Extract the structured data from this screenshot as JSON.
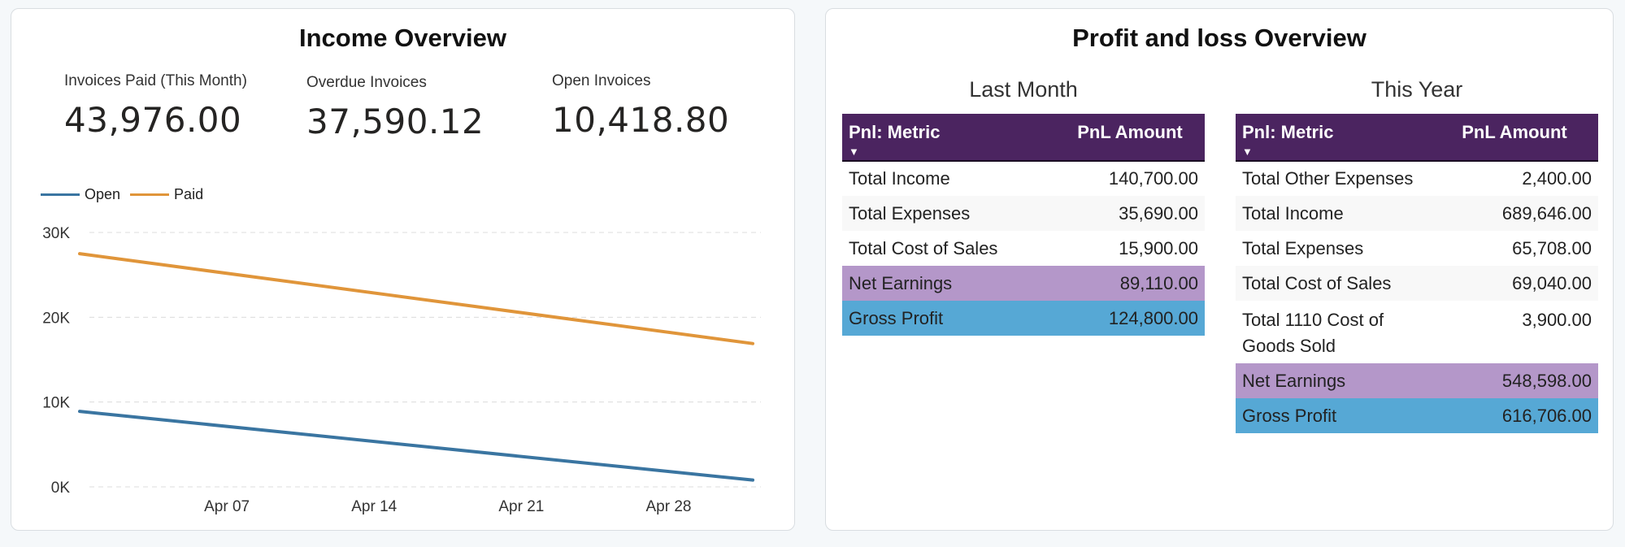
{
  "income": {
    "title": "Income Overview",
    "kpis": [
      {
        "label": "Invoices Paid (This Month)",
        "value": "43,976.00"
      },
      {
        "label": "Overdue Invoices",
        "value": "37,590.12"
      },
      {
        "label": "Open Invoices",
        "value": "10,418.80"
      }
    ],
    "legend": [
      {
        "name": "Open",
        "color": "#3a75a1"
      },
      {
        "name": "Paid",
        "color": "#e0953a"
      }
    ]
  },
  "chart_data": {
    "type": "line",
    "x_ticks": [
      "Apr 07",
      "Apr 14",
      "Apr 21",
      "Apr 28"
    ],
    "y_ticks": [
      "30K",
      "20K",
      "10K",
      "0K"
    ],
    "ylim": [
      0,
      30000
    ],
    "xlim": [
      "Mar 31",
      "May 02"
    ],
    "grid": true,
    "legend_position": "top-left",
    "series": [
      {
        "name": "Open",
        "color": "#3a75a1",
        "x": [
          "Mar 31",
          "May 02"
        ],
        "values": [
          8900,
          800
        ]
      },
      {
        "name": "Paid",
        "color": "#e0953a",
        "x": [
          "Mar 31",
          "May 02"
        ],
        "values": [
          27500,
          16900
        ]
      }
    ]
  },
  "pnl": {
    "title": "Profit and loss Overview",
    "last_month": {
      "caption": "Last Month",
      "headers": {
        "metric": "Pnl: Metric",
        "amount": "PnL Amount"
      },
      "rows": [
        {
          "metric": "Total Income",
          "amount": "140,700.00",
          "style": "normal"
        },
        {
          "metric": "Total Expenses",
          "amount": "35,690.00",
          "style": "alt"
        },
        {
          "metric": "Total Cost of Sales",
          "amount": "15,900.00",
          "style": "normal"
        },
        {
          "metric": "Net Earnings",
          "amount": "89,110.00",
          "style": "net"
        },
        {
          "metric": "Gross Profit",
          "amount": "124,800.00",
          "style": "gross"
        }
      ]
    },
    "this_year": {
      "caption": "This Year",
      "headers": {
        "metric": "Pnl: Metric",
        "amount": "PnL Amount"
      },
      "rows": [
        {
          "metric": "Total Other Expenses",
          "amount": "2,400.00",
          "style": "normal"
        },
        {
          "metric": "Total Income",
          "amount": "689,646.00",
          "style": "alt"
        },
        {
          "metric": "Total Expenses",
          "amount": "65,708.00",
          "style": "normal"
        },
        {
          "metric": "Total Cost of Sales",
          "amount": "69,040.00",
          "style": "alt"
        },
        {
          "metric": "Total 1110 Cost of Goods Sold",
          "amount": "3,900.00",
          "style": "tall"
        },
        {
          "metric": "Net Earnings",
          "amount": "548,598.00",
          "style": "net"
        },
        {
          "metric": "Gross Profit",
          "amount": "616,706.00",
          "style": "gross"
        }
      ]
    }
  }
}
